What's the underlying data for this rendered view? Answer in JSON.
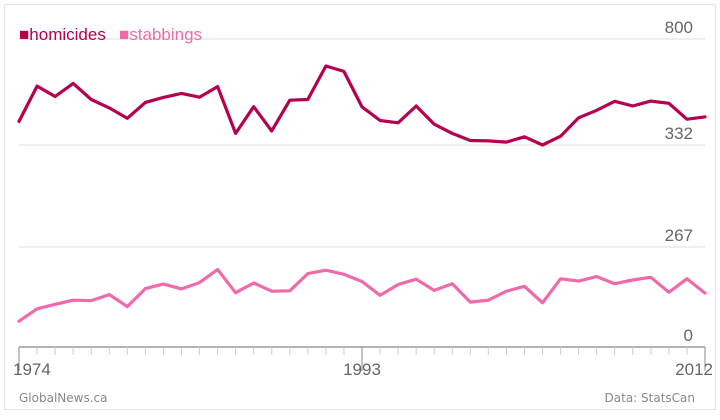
{
  "colors": {
    "homicides": "#b5004f",
    "stabbings": "#f06aaa",
    "grid": "#dddddd",
    "axis": "#888888",
    "text": "#666666"
  },
  "legend": [
    {
      "swatch": "■",
      "label": "homicides",
      "color": "#b5004f"
    },
    {
      "swatch": "■",
      "label": "stabbings",
      "color": "#f06aaa"
    }
  ],
  "footer": {
    "left": "GlobalNews.ca",
    "right": "Data: StatsCan"
  },
  "chart_data": [
    {
      "type": "line",
      "y_ticks": [
        332,
        800
      ],
      "ylim": [
        332,
        800
      ],
      "grid": true,
      "series": [
        {
          "name": "homicides",
          "x": [
            1974,
            1975,
            1976,
            1977,
            1978,
            1979,
            1980,
            1981,
            1982,
            1983,
            1984,
            1985,
            1986,
            1987,
            1988,
            1989,
            1990,
            1991,
            1992,
            1993,
            1994,
            1995,
            1996,
            1997,
            1998,
            1999,
            2000,
            2001,
            2002,
            2003,
            2004,
            2005,
            2006,
            2007,
            2008,
            2009,
            2010,
            2011,
            2012
          ],
          "values": [
            436,
            592,
            546,
            604,
            533,
            496,
            450,
            520,
            542,
            560,
            543,
            590,
            383,
            501,
            394,
            530,
            533,
            681,
            657,
            500,
            440,
            430,
            504,
            424,
            383,
            352,
            350,
            345,
            368,
            332,
            371,
            452,
            485,
            525,
            504,
            526,
            516,
            446,
            456
          ]
        }
      ]
    },
    {
      "type": "line",
      "y_ticks": [
        0,
        267
      ],
      "ylim": [
        0,
        267
      ],
      "grid": true,
      "x_ticks": [
        1974,
        1993,
        2012
      ],
      "series": [
        {
          "name": "stabbings",
          "x": [
            1974,
            1975,
            1976,
            1977,
            1978,
            1979,
            1980,
            1981,
            1982,
            1983,
            1984,
            1985,
            1986,
            1987,
            1988,
            1989,
            1990,
            1991,
            1992,
            1993,
            1994,
            1995,
            1996,
            1997,
            1998,
            1999,
            2000,
            2001,
            2002,
            2003,
            2004,
            2005,
            2006,
            2007,
            2008,
            2009,
            2010,
            2011,
            2012
          ],
          "values": [
            69,
            102,
            114,
            125,
            124,
            140,
            108,
            156,
            168,
            155,
            172,
            207,
            145,
            171,
            149,
            150,
            196,
            205,
            194,
            175,
            138,
            167,
            181,
            151,
            169,
            120,
            125,
            149,
            162,
            118,
            182,
            176,
            188,
            169,
            179,
            186,
            146,
            182,
            144
          ]
        }
      ]
    }
  ]
}
